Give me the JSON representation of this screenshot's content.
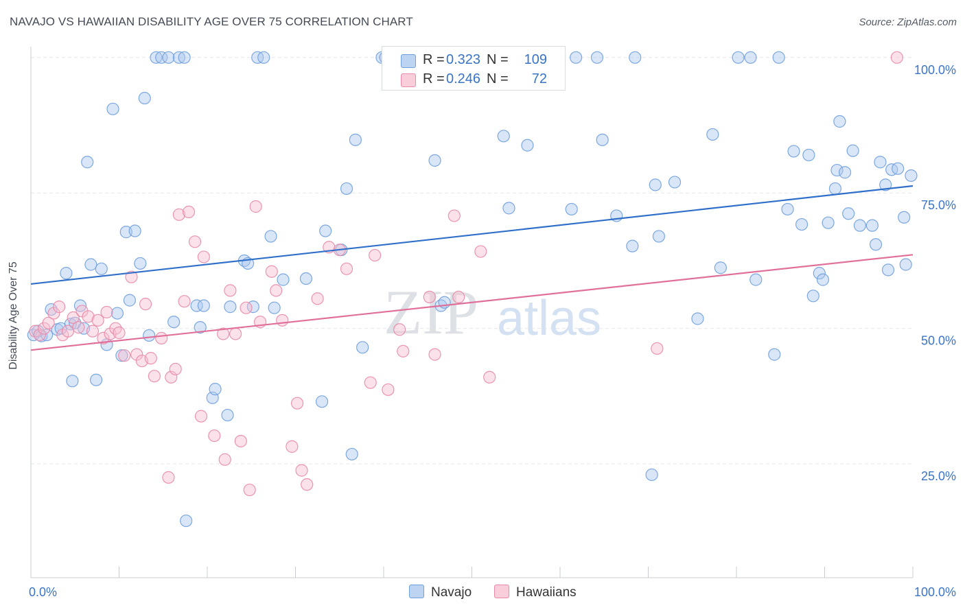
{
  "title": "NAVAJO VS HAWAIIAN DISABILITY AGE OVER 75 CORRELATION CHART",
  "source": "Source: ZipAtlas.com",
  "watermark": {
    "zip": "ZIP",
    "atlas": "atlas"
  },
  "legend": {
    "rows": [
      {
        "r_label": "R =",
        "r_value": "0.323",
        "n_label": "N =",
        "n_value": "109"
      },
      {
        "r_label": "R =",
        "r_value": "0.246",
        "n_label": "N =",
        "n_value": "72"
      }
    ]
  },
  "bottom_legend": [
    "Navajo",
    "Hawaiians"
  ],
  "colors": {
    "navajo_fill": "#aac8f0",
    "navajo_stroke": "#6f9fdc",
    "navajo_line": "#2f6fc9",
    "hawaiians_fill": "#f7bfd0",
    "hawaiians_stroke": "#e88aa8",
    "hawaiians_line": "#e0709a",
    "tick_label": "#3a74c8",
    "grid": "#e3e6ea"
  },
  "chart_data": {
    "type": "scatter",
    "title": "NAVAJO VS HAWAIIAN DISABILITY AGE OVER 75 CORRELATION CHART",
    "xlabel": "",
    "ylabel": "Disability Age Over 75",
    "xlim": [
      0,
      100
    ],
    "ylim": [
      4,
      102
    ],
    "x_tick_labels": [
      "0.0%",
      "100.0%"
    ],
    "y_ticks": [
      25,
      50,
      75,
      100
    ],
    "y_tick_labels": [
      "25.0%",
      "50.0%",
      "75.0%",
      "100.0%"
    ],
    "grid": true,
    "legend_position": "top-center",
    "series": [
      {
        "name": "Navajo",
        "trend": {
          "x": [
            0,
            100
          ],
          "y": [
            58.2,
            76.3
          ]
        },
        "points": [
          [
            0.3,
            48.8
          ],
          [
            0.8,
            49.5
          ],
          [
            1.2,
            48.6
          ],
          [
            1.8,
            48.8
          ],
          [
            2.3,
            53.5
          ],
          [
            3.0,
            49.8
          ],
          [
            3.4,
            50.0
          ],
          [
            4.0,
            60.2
          ],
          [
            4.5,
            50.8
          ],
          [
            5.0,
            51.0
          ],
          [
            4.7,
            40.3
          ],
          [
            5.6,
            54.2
          ],
          [
            6.0,
            50.0
          ],
          [
            6.4,
            80.7
          ],
          [
            6.8,
            61.8
          ],
          [
            7.4,
            40.5
          ],
          [
            8.0,
            61.0
          ],
          [
            8.6,
            47.0
          ],
          [
            9.3,
            90.5
          ],
          [
            9.8,
            52.8
          ],
          [
            10.3,
            45.0
          ],
          [
            10.8,
            67.8
          ],
          [
            11.2,
            55.2
          ],
          [
            11.8,
            68.0
          ],
          [
            12.4,
            62.0
          ],
          [
            12.9,
            92.5
          ],
          [
            13.4,
            48.7
          ],
          [
            14.2,
            100.0
          ],
          [
            14.8,
            100.0
          ],
          [
            15.6,
            100.0
          ],
          [
            16.2,
            51.2
          ],
          [
            16.8,
            100.0
          ],
          [
            17.4,
            100.0
          ],
          [
            17.6,
            14.5
          ],
          [
            18.8,
            54.2
          ],
          [
            19.2,
            50.2
          ],
          [
            19.6,
            54.2
          ],
          [
            20.6,
            37.2
          ],
          [
            20.9,
            38.8
          ],
          [
            22.3,
            34.0
          ],
          [
            22.6,
            54.0
          ],
          [
            24.2,
            62.5
          ],
          [
            24.6,
            62.0
          ],
          [
            25.2,
            54.0
          ],
          [
            25.7,
            100.0
          ],
          [
            26.4,
            100.0
          ],
          [
            27.2,
            67.0
          ],
          [
            27.6,
            53.8
          ],
          [
            28.6,
            59.0
          ],
          [
            31.2,
            59.2
          ],
          [
            33.0,
            36.5
          ],
          [
            33.4,
            68.0
          ],
          [
            35.2,
            64.5
          ],
          [
            35.8,
            75.8
          ],
          [
            36.4,
            26.8
          ],
          [
            36.8,
            84.8
          ],
          [
            37.6,
            46.5
          ],
          [
            39.8,
            100.0
          ],
          [
            40.2,
            100.0
          ],
          [
            41.8,
            98.0
          ],
          [
            44.2,
            100.0
          ],
          [
            45.8,
            81.0
          ],
          [
            46.5,
            54.2
          ],
          [
            46.9,
            54.8
          ],
          [
            53.6,
            85.5
          ],
          [
            54.2,
            72.2
          ],
          [
            56.3,
            83.8
          ],
          [
            61.8,
            100.0
          ],
          [
            61.3,
            72.0
          ],
          [
            64.2,
            100.0
          ],
          [
            64.8,
            84.8
          ],
          [
            66.4,
            70.8
          ],
          [
            68.5,
            100.0
          ],
          [
            68.2,
            65.2
          ],
          [
            70.4,
            23.0
          ],
          [
            70.8,
            76.5
          ],
          [
            71.2,
            67.0
          ],
          [
            73.0,
            77.0
          ],
          [
            75.6,
            51.8
          ],
          [
            77.3,
            85.8
          ],
          [
            78.2,
            61.2
          ],
          [
            80.2,
            100.0
          ],
          [
            81.6,
            100.0
          ],
          [
            82.2,
            59.0
          ],
          [
            84.3,
            45.2
          ],
          [
            84.8,
            100.0
          ],
          [
            85.8,
            72.0
          ],
          [
            86.5,
            82.7
          ],
          [
            87.4,
            69.2
          ],
          [
            88.2,
            82.0
          ],
          [
            88.7,
            56.0
          ],
          [
            89.4,
            60.2
          ],
          [
            89.8,
            59.0
          ],
          [
            90.4,
            69.5
          ],
          [
            91.2,
            75.8
          ],
          [
            91.4,
            79.2
          ],
          [
            91.7,
            88.2
          ],
          [
            92.3,
            78.8
          ],
          [
            92.7,
            71.2
          ],
          [
            93.2,
            82.8
          ],
          [
            94.0,
            69.0
          ],
          [
            95.4,
            69.0
          ],
          [
            95.8,
            65.5
          ],
          [
            96.3,
            80.7
          ],
          [
            96.9,
            76.5
          ],
          [
            97.2,
            60.8
          ],
          [
            97.6,
            79.3
          ],
          [
            98.3,
            79.5
          ],
          [
            99.0,
            70.5
          ],
          [
            99.2,
            61.8
          ],
          [
            99.8,
            78.2
          ]
        ]
      },
      {
        "name": "Hawaiians",
        "trend": {
          "x": [
            0,
            100
          ],
          "y": [
            46.0,
            63.6
          ]
        },
        "points": [
          [
            0.5,
            49.5
          ],
          [
            1.0,
            48.8
          ],
          [
            1.5,
            50.0
          ],
          [
            2.0,
            51.0
          ],
          [
            2.6,
            52.8
          ],
          [
            3.2,
            54.0
          ],
          [
            3.6,
            48.8
          ],
          [
            4.2,
            49.5
          ],
          [
            4.8,
            52.0
          ],
          [
            5.4,
            50.2
          ],
          [
            5.8,
            53.2
          ],
          [
            6.5,
            52.2
          ],
          [
            7.0,
            49.5
          ],
          [
            7.6,
            51.5
          ],
          [
            8.2,
            48.2
          ],
          [
            8.6,
            53.0
          ],
          [
            9.0,
            49.0
          ],
          [
            9.6,
            50.0
          ],
          [
            10.0,
            49.2
          ],
          [
            10.6,
            45.0
          ],
          [
            11.4,
            59.5
          ],
          [
            12.0,
            45.2
          ],
          [
            12.6,
            44.0
          ],
          [
            13.0,
            54.5
          ],
          [
            13.6,
            44.5
          ],
          [
            14.0,
            41.2
          ],
          [
            14.8,
            48.2
          ],
          [
            15.6,
            22.5
          ],
          [
            15.9,
            41.0
          ],
          [
            16.4,
            42.5
          ],
          [
            16.8,
            71.0
          ],
          [
            17.4,
            55.0
          ],
          [
            17.9,
            71.5
          ],
          [
            18.6,
            66.0
          ],
          [
            19.3,
            33.8
          ],
          [
            19.6,
            63.2
          ],
          [
            20.8,
            30.2
          ],
          [
            21.8,
            49.0
          ],
          [
            22.0,
            25.8
          ],
          [
            22.6,
            57.0
          ],
          [
            23.2,
            49.0
          ],
          [
            23.8,
            29.2
          ],
          [
            24.4,
            53.8
          ],
          [
            24.8,
            20.2
          ],
          [
            25.5,
            72.5
          ],
          [
            26.0,
            51.2
          ],
          [
            27.3,
            60.5
          ],
          [
            27.8,
            57.0
          ],
          [
            28.5,
            51.5
          ],
          [
            29.6,
            28.2
          ],
          [
            30.2,
            36.2
          ],
          [
            30.7,
            23.8
          ],
          [
            31.3,
            21.2
          ],
          [
            32.5,
            55.5
          ],
          [
            33.8,
            65.0
          ],
          [
            35.0,
            64.5
          ],
          [
            35.8,
            61.0
          ],
          [
            38.5,
            40.0
          ],
          [
            39.0,
            63.5
          ],
          [
            40.5,
            38.7
          ],
          [
            41.8,
            49.8
          ],
          [
            42.2,
            45.8
          ],
          [
            45.2,
            55.8
          ],
          [
            45.8,
            45.2
          ],
          [
            48.0,
            70.8
          ],
          [
            48.5,
            55.8
          ],
          [
            51.0,
            64.2
          ],
          [
            52.0,
            41.0
          ],
          [
            71.0,
            46.3
          ],
          [
            98.2,
            100.0
          ]
        ]
      }
    ]
  }
}
